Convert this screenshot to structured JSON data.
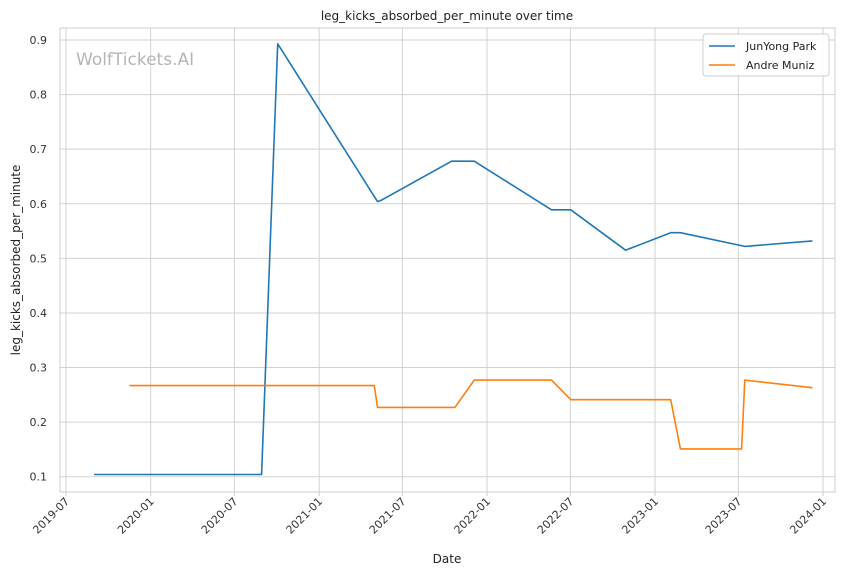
{
  "chart_data": {
    "type": "line",
    "title": "leg_kicks_absorbed_per_minute over time",
    "xlabel": "Date",
    "ylabel": "leg_kicks_absorbed_per_minute",
    "watermark": "WolfTickets.AI",
    "xlim": [
      "2019-06-18",
      "2024-01-27"
    ],
    "ylim": [
      0.072,
      0.922
    ],
    "x_ticks": [
      "2019-07",
      "2020-01",
      "2020-07",
      "2021-01",
      "2021-07",
      "2022-01",
      "2022-07",
      "2023-01",
      "2023-07",
      "2024-01"
    ],
    "y_ticks": [
      "0.1",
      "0.2",
      "0.3",
      "0.4",
      "0.5",
      "0.6",
      "0.7",
      "0.8",
      "0.9"
    ],
    "grid": true,
    "legend_position": "top-right",
    "series": [
      {
        "name": "JunYong Park",
        "color": "#1f77b4",
        "points": [
          {
            "x": "2019-08-31",
            "y": 0.104
          },
          {
            "x": "2020-08-29",
            "y": 0.104
          },
          {
            "x": "2020-10-03",
            "y": 0.893
          },
          {
            "x": "2021-05-08",
            "y": 0.604
          },
          {
            "x": "2021-05-15",
            "y": 0.606
          },
          {
            "x": "2021-10-16",
            "y": 0.678
          },
          {
            "x": "2021-12-04",
            "y": 0.678
          },
          {
            "x": "2022-05-21",
            "y": 0.589
          },
          {
            "x": "2022-07-02",
            "y": 0.589
          },
          {
            "x": "2022-10-29",
            "y": 0.515
          },
          {
            "x": "2023-02-04",
            "y": 0.547
          },
          {
            "x": "2023-02-25",
            "y": 0.547
          },
          {
            "x": "2023-07-15",
            "y": 0.522
          },
          {
            "x": "2023-12-09",
            "y": 0.532
          }
        ]
      },
      {
        "name": "Andre Muniz",
        "color": "#ff7f0e",
        "points": [
          {
            "x": "2019-11-16",
            "y": 0.267
          },
          {
            "x": "2021-05-01",
            "y": 0.267
          },
          {
            "x": "2021-05-08",
            "y": 0.227
          },
          {
            "x": "2021-10-23",
            "y": 0.227
          },
          {
            "x": "2021-12-04",
            "y": 0.277
          },
          {
            "x": "2022-05-21",
            "y": 0.277
          },
          {
            "x": "2022-07-02",
            "y": 0.241
          },
          {
            "x": "2023-02-04",
            "y": 0.241
          },
          {
            "x": "2023-02-25",
            "y": 0.151
          },
          {
            "x": "2023-07-08",
            "y": 0.151
          },
          {
            "x": "2023-07-15",
            "y": 0.277
          },
          {
            "x": "2023-12-09",
            "y": 0.263
          }
        ]
      }
    ]
  }
}
